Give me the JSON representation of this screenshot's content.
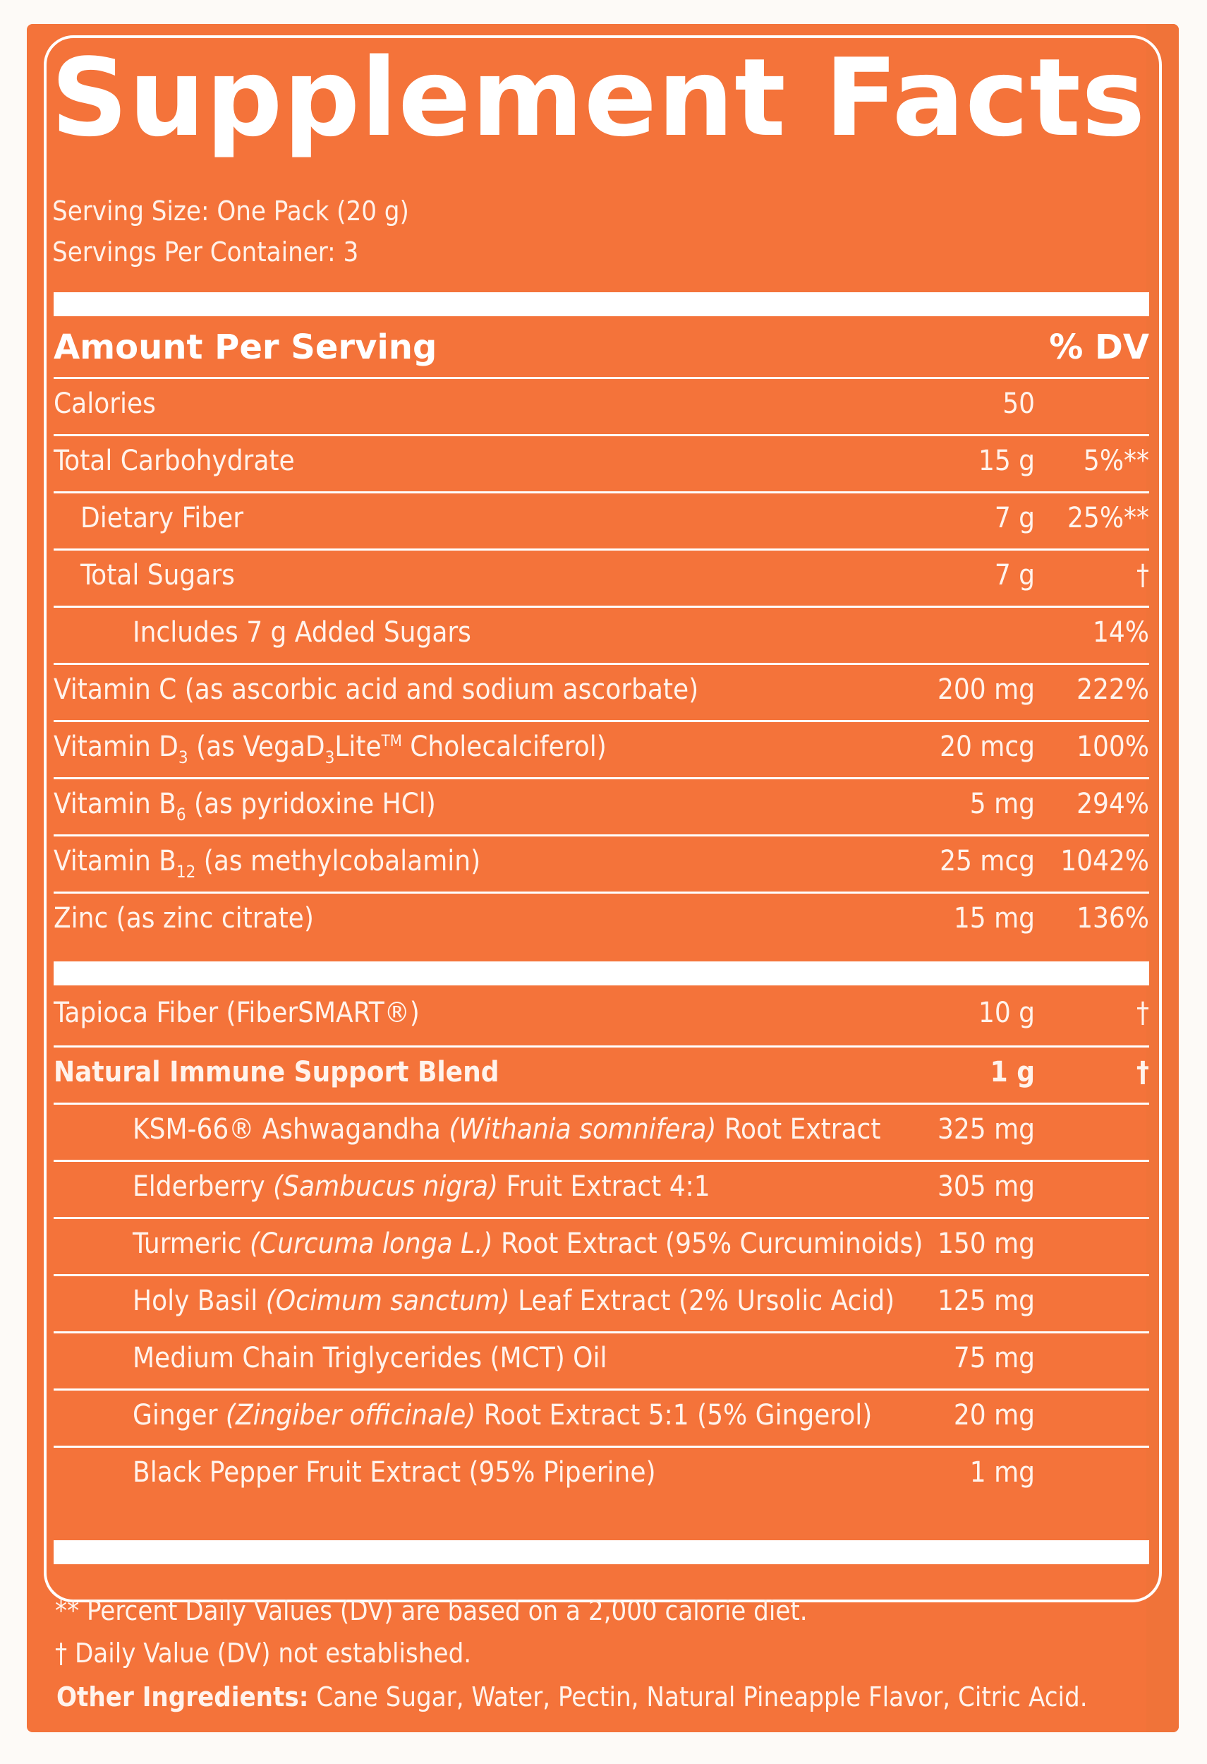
{
  "title": "Supplement Facts",
  "serving": {
    "size": "Serving Size: One Pack (20 g)",
    "per_container": "Servings Per Container: 3"
  },
  "header": {
    "left": "Amount Per Serving",
    "right": "% DV"
  },
  "nutrients": [
    {
      "name": "Calories",
      "amount": "50",
      "dv": ""
    },
    {
      "name": "Total Carbohydrate",
      "amount": "15 g",
      "dv": "5%**"
    },
    {
      "name": "Dietary Fiber",
      "amount": "7 g",
      "dv": "25%**"
    },
    {
      "name": "Total Sugars",
      "amount": "7 g",
      "dv": "†"
    },
    {
      "name": "Includes 7 g Added Sugars",
      "amount": "",
      "dv": "14%"
    },
    {
      "name": "Vitamin C (as ascorbic acid and sodium ascorbate)",
      "amount": "200 mg",
      "dv": "222%"
    },
    {
      "name_pre": "Vitamin D",
      "name_sub": "3",
      "name_mid": " (as VegaD",
      "name_sub2": "3",
      "name_mid2": "Lite",
      "name_sup": "TM",
      "name_post": " Cholecalciferol)",
      "amount": "20 mcg",
      "dv": "100%"
    },
    {
      "name_pre": "Vitamin B",
      "name_sub": "6",
      "name_post": " (as pyridoxine HCl)",
      "amount": "5 mg",
      "dv": "294%"
    },
    {
      "name_pre": "Vitamin B",
      "name_sub": "12",
      "name_post": " (as methylcobalamin)",
      "amount": "25 mcg",
      "dv": "1042%"
    },
    {
      "name": "Zinc (as zinc citrate)",
      "amount": "15 mg",
      "dv": "136%"
    }
  ],
  "fiber_row": {
    "name": "Tapioca Fiber (FiberSMART®)",
    "amount": "10 g",
    "dv": "†"
  },
  "blend_row": {
    "name": "Natural Immune Support Blend",
    "amount": "1 g",
    "dv": "†"
  },
  "blend_items": [
    {
      "pre": "KSM-66® Ashwagandha ",
      "latin": "(Withania somnifera)",
      "post": " Root Extract",
      "amount": "325 mg"
    },
    {
      "pre": "Elderberry ",
      "latin": "(Sambucus nigra)",
      "post": " Fruit Extract 4:1",
      "amount": "305 mg"
    },
    {
      "pre": "Turmeric ",
      "latin": "(Curcuma longa L.)",
      "post": " Root Extract (95% Curcuminoids)",
      "amount": "150 mg"
    },
    {
      "pre": "Holy Basil ",
      "latin": "(Ocimum sanctum)",
      "post": " Leaf Extract (2% Ursolic Acid)",
      "amount": "125 mg"
    },
    {
      "pre": "Medium Chain Triglycerides (MCT) Oil",
      "latin": "",
      "post": "",
      "amount": "75 mg"
    },
    {
      "pre": "Ginger ",
      "latin": "(Zingiber officinale)",
      "post": " Root Extract 5:1 (5% Gingerol)",
      "amount": "20 mg"
    },
    {
      "pre": "Black Pepper Fruit Extract (95% Piperine)",
      "latin": "",
      "post": "",
      "amount": "1 mg"
    }
  ],
  "footnotes": {
    "dv_basis": "** Percent Daily Values (DV) are based on a 2,000 calorie diet.",
    "not_established": "† Daily Value (DV) not established."
  },
  "other_ingredients": {
    "label": "Other Ingredients:",
    "text": " Cane Sugar, Water, Pectin, Natural Pineapple Flavor, Citric Acid."
  },
  "colors": {
    "background": "#f4733a",
    "text": "#ffffff"
  }
}
